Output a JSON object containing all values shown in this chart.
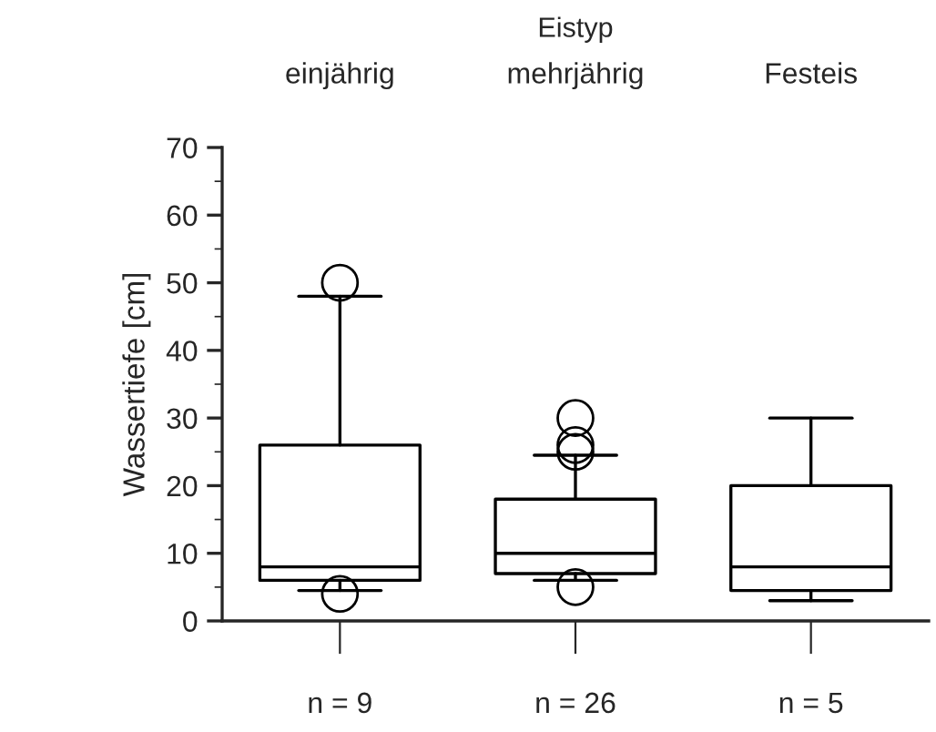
{
  "chart_data": {
    "type": "box",
    "xlabel": "Eistyp",
    "ylabel": "Wassertiefe [cm]",
    "categories": [
      "einjährig",
      "mehrjährig",
      "Festeis"
    ],
    "boxes": [
      {
        "low": 4.5,
        "q1": 6,
        "median": 8,
        "q3": 26,
        "high": 48,
        "outliers": [
          50,
          4
        ]
      },
      {
        "low": 6,
        "q1": 7,
        "median": 10,
        "q3": 18,
        "high": 24.5,
        "outliers": [
          30,
          26,
          25,
          5
        ]
      },
      {
        "low": 3,
        "q1": 4.5,
        "median": 8,
        "q3": 20,
        "high": 30
      }
    ],
    "ylim": [
      0,
      70
    ],
    "yticks": [
      0,
      10,
      20,
      30,
      40,
      50,
      60,
      70
    ],
    "grid": false,
    "legend": false,
    "annotations": [
      "n = 9",
      "n = 26",
      "n = 5"
    ]
  }
}
